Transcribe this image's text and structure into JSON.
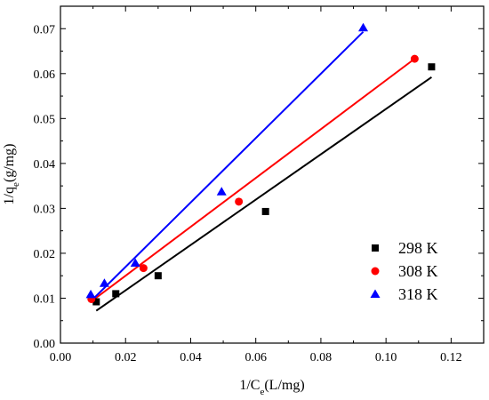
{
  "chart_data": {
    "type": "scatter",
    "title": "",
    "xlabel": {
      "main": "1/C",
      "sub": "e",
      "rest": "(L/mg)"
    },
    "ylabel": {
      "main": "1/q",
      "sub": "e",
      "rest": "(g/mg)"
    },
    "xlim": [
      0.0,
      0.13
    ],
    "ylim": [
      0.0,
      0.075
    ],
    "xticks": [
      0.0,
      0.02,
      0.04,
      0.06,
      0.08,
      0.1,
      0.12
    ],
    "xtick_labels": [
      "0.00",
      "0.02",
      "0.04",
      "0.06",
      "0.08",
      "0.10",
      "0.12"
    ],
    "yticks": [
      0.0,
      0.01,
      0.02,
      0.03,
      0.04,
      0.05,
      0.06,
      0.07
    ],
    "ytick_labels": [
      "0.00",
      "0.01",
      "0.02",
      "0.03",
      "0.04",
      "0.05",
      "0.06",
      "0.07"
    ],
    "grid": false,
    "legend_position": "right",
    "series": [
      {
        "name": "298 K",
        "marker": "square",
        "color": "#000000",
        "points": [
          [
            0.011,
            0.0092
          ],
          [
            0.017,
            0.011
          ],
          [
            0.03,
            0.015
          ],
          [
            0.063,
            0.0293
          ],
          [
            0.114,
            0.0615
          ]
        ],
        "fit_line": [
          [
            0.011,
            0.0072
          ],
          [
            0.114,
            0.0592
          ]
        ]
      },
      {
        "name": "308 K",
        "marker": "circle",
        "color": "#ff0000",
        "points": [
          [
            0.0095,
            0.0098
          ],
          [
            0.0255,
            0.0167
          ],
          [
            0.0548,
            0.0315
          ],
          [
            0.1088,
            0.0633
          ]
        ],
        "fit_line": [
          [
            0.0095,
            0.0093
          ],
          [
            0.1088,
            0.0633
          ]
        ]
      },
      {
        "name": "318 K",
        "marker": "triangle",
        "color": "#0000ff",
        "points": [
          [
            0.0093,
            0.0108
          ],
          [
            0.0135,
            0.0133
          ],
          [
            0.023,
            0.0178
          ],
          [
            0.0495,
            0.0337
          ],
          [
            0.093,
            0.0702
          ]
        ],
        "fit_line": [
          [
            0.0093,
            0.0093
          ],
          [
            0.093,
            0.0693
          ]
        ]
      }
    ]
  }
}
